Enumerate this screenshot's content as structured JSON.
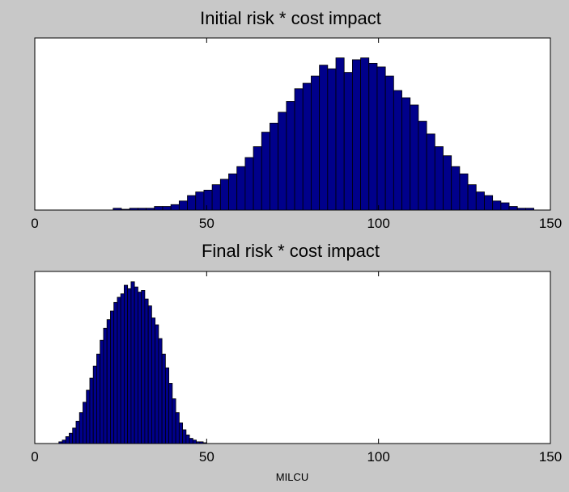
{
  "chart_data": [
    {
      "type": "bar",
      "title": "Initial risk * cost impact",
      "xlabel": "",
      "ylabel": "",
      "xlim": [
        0,
        150
      ],
      "xticks": [
        0,
        50,
        100,
        150
      ],
      "tick_labels": [
        "0",
        "50",
        "100",
        "150"
      ],
      "grid": false,
      "bar_color": "#00008b",
      "bin_width": 2.4,
      "bin_centers": [
        24,
        26.4,
        28.8,
        31.2,
        33.6,
        36,
        38.4,
        40.8,
        43.2,
        45.6,
        48,
        50.4,
        52.8,
        55.2,
        57.6,
        60,
        62.4,
        64.8,
        67.2,
        69.6,
        72,
        74.4,
        76.8,
        79.2,
        81.6,
        84,
        86.4,
        88.8,
        91.2,
        93.6,
        96,
        98.4,
        100.8,
        103.2,
        105.6,
        108,
        110.4,
        112.8,
        115.2,
        117.6,
        120,
        122.4,
        124.8,
        127.2,
        129.6,
        132,
        134.4,
        136.8,
        139.2,
        141.6,
        144
      ],
      "counts": [
        1,
        0,
        1,
        1,
        1,
        2,
        2,
        3,
        5,
        8,
        10,
        11,
        14,
        17,
        20,
        24,
        29,
        35,
        43,
        48,
        54,
        60,
        67,
        70,
        74,
        80,
        78,
        84,
        76,
        83,
        84,
        81,
        79,
        74,
        66,
        62,
        58,
        49,
        42,
        35,
        30,
        24,
        20,
        14,
        10,
        8,
        5,
        4,
        2,
        1,
        1
      ],
      "ylim": [
        0,
        95
      ]
    },
    {
      "type": "bar",
      "title": "Final risk * cost impact",
      "xlabel": "MILCU",
      "ylabel": "",
      "xlim": [
        0,
        150
      ],
      "xticks": [
        0,
        50,
        100,
        150
      ],
      "tick_labels": [
        "0",
        "50",
        "100",
        "150"
      ],
      "grid": false,
      "bar_color": "#00008b",
      "bin_width": 1.0,
      "bin_centers": [
        7.5,
        8.5,
        9.5,
        10.5,
        11.5,
        12.5,
        13.5,
        14.5,
        15.5,
        16.5,
        17.5,
        18.5,
        19.5,
        20.5,
        21.5,
        22.5,
        23.5,
        24.5,
        25.5,
        26.5,
        27.5,
        28.5,
        29.5,
        30.5,
        31.5,
        32.5,
        33.5,
        34.5,
        35.5,
        36.5,
        37.5,
        38.5,
        39.5,
        40.5,
        41.5,
        42.5,
        43.5,
        44.5,
        45.5,
        46.5,
        47.5,
        48.5,
        49.5
      ],
      "counts": [
        1,
        2,
        4,
        6,
        9,
        13,
        18,
        24,
        31,
        38,
        45,
        52,
        60,
        67,
        72,
        77,
        82,
        85,
        87,
        92,
        90,
        94,
        91,
        88,
        89,
        84,
        80,
        73,
        69,
        61,
        52,
        44,
        35,
        26,
        18,
        12,
        8,
        5,
        3,
        2,
        1,
        1,
        0
      ],
      "ylim": [
        0,
        100
      ]
    }
  ]
}
